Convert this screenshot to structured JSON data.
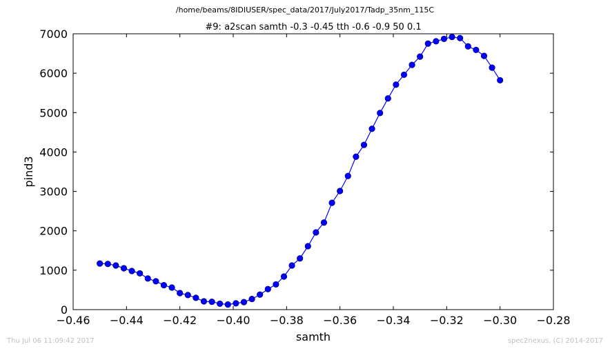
{
  "figure": {
    "suptitle": "/home/beams/8IDIUSER/spec_data/2017/July2017/Tadp_35nm_115C",
    "timestamp": "Thu Jul 06 11:09:42 2017",
    "credit": "spec2nexus, (C) 2014-2017"
  },
  "colors": {
    "series": "#0000ff",
    "marker_edge": "#00007a"
  },
  "chart_data": {
    "type": "line",
    "title": "#9: a2scan  samth -0.3 -0.45  tth -0.6 -0.9  50 0.1",
    "xlabel": "samth",
    "ylabel": "pind3",
    "xlim": [
      -0.46,
      -0.28
    ],
    "ylim": [
      0,
      7000
    ],
    "xticks": [
      "−0.46",
      "−0.44",
      "−0.42",
      "−0.40",
      "−0.38",
      "−0.36",
      "−0.34",
      "−0.32",
      "−0.30",
      "−0.28"
    ],
    "yticks": [
      "0",
      "1000",
      "2000",
      "3000",
      "4000",
      "5000",
      "6000",
      "7000"
    ],
    "grid": false,
    "legend": false,
    "series": [
      {
        "x": [
          -0.45,
          -0.447,
          -0.444,
          -0.441,
          -0.438,
          -0.435,
          -0.432,
          -0.429,
          -0.426,
          -0.423,
          -0.42,
          -0.417,
          -0.414,
          -0.411,
          -0.408,
          -0.405,
          -0.402,
          -0.399,
          -0.396,
          -0.393,
          -0.39,
          -0.387,
          -0.384,
          -0.381,
          -0.378,
          -0.375,
          -0.372,
          -0.369,
          -0.366,
          -0.363,
          -0.36,
          -0.357,
          -0.354,
          -0.351,
          -0.348,
          -0.345,
          -0.342,
          -0.339,
          -0.336,
          -0.333,
          -0.33,
          -0.327,
          -0.324,
          -0.321,
          -0.318,
          -0.315,
          -0.312,
          -0.309,
          -0.306,
          -0.303,
          -0.3
        ],
        "y": [
          1170,
          1160,
          1120,
          1050,
          980,
          920,
          790,
          720,
          620,
          560,
          420,
          370,
          300,
          210,
          200,
          150,
          130,
          160,
          190,
          270,
          380,
          520,
          640,
          840,
          1120,
          1300,
          1610,
          1960,
          2210,
          2710,
          3010,
          3390,
          3880,
          4180,
          4590,
          4990,
          5360,
          5710,
          5960,
          6210,
          6420,
          6750,
          6810,
          6870,
          6920,
          6890,
          6680,
          6590,
          6440,
          6140,
          5820
        ]
      }
    ]
  }
}
